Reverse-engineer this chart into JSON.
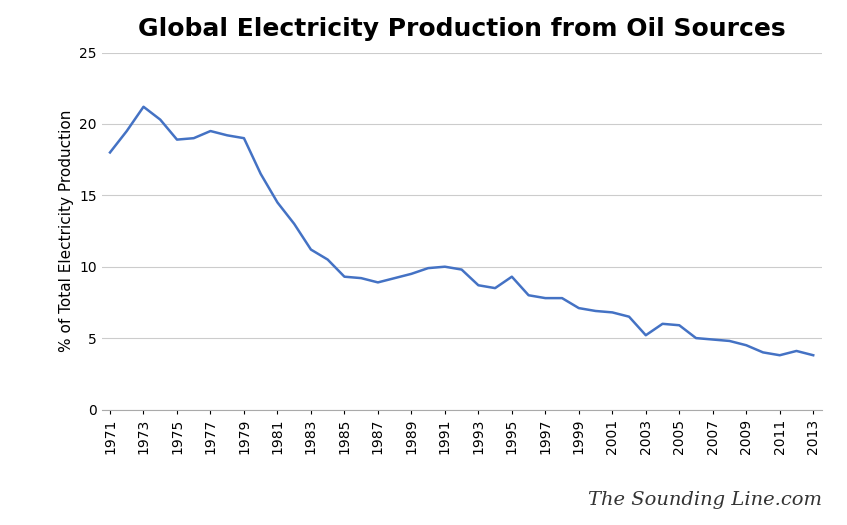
{
  "title": "Global Electricity Production from Oil Sources",
  "ylabel": "% of Total Electricity Production",
  "watermark": "The Sounding Line.com",
  "line_color": "#4472C4",
  "background_color": "#ffffff",
  "years": [
    1971,
    1972,
    1973,
    1974,
    1975,
    1976,
    1977,
    1978,
    1979,
    1980,
    1981,
    1982,
    1983,
    1984,
    1985,
    1986,
    1987,
    1988,
    1989,
    1990,
    1991,
    1992,
    1993,
    1994,
    1995,
    1996,
    1997,
    1998,
    1999,
    2000,
    2001,
    2002,
    2003,
    2004,
    2005,
    2006,
    2007,
    2008,
    2009,
    2010,
    2011,
    2012,
    2013
  ],
  "values": [
    18.0,
    19.5,
    21.2,
    20.3,
    18.9,
    19.0,
    19.5,
    19.2,
    19.0,
    16.5,
    14.5,
    13.0,
    11.2,
    10.5,
    9.3,
    9.2,
    8.9,
    9.2,
    9.5,
    9.9,
    10.0,
    9.8,
    8.7,
    8.5,
    9.3,
    8.0,
    7.8,
    7.8,
    7.1,
    6.9,
    6.8,
    6.5,
    5.2,
    6.0,
    5.9,
    5.0,
    4.9,
    4.8,
    4.5,
    4.0,
    3.8,
    4.1,
    3.8
  ],
  "ylim": [
    0,
    25
  ],
  "yticks": [
    0,
    5,
    10,
    15,
    20,
    25
  ],
  "title_fontsize": 18,
  "label_fontsize": 11,
  "tick_fontsize": 10,
  "watermark_fontsize": 14,
  "line_width": 1.8,
  "grid_color": "#cccccc",
  "spine_color": "#aaaaaa"
}
